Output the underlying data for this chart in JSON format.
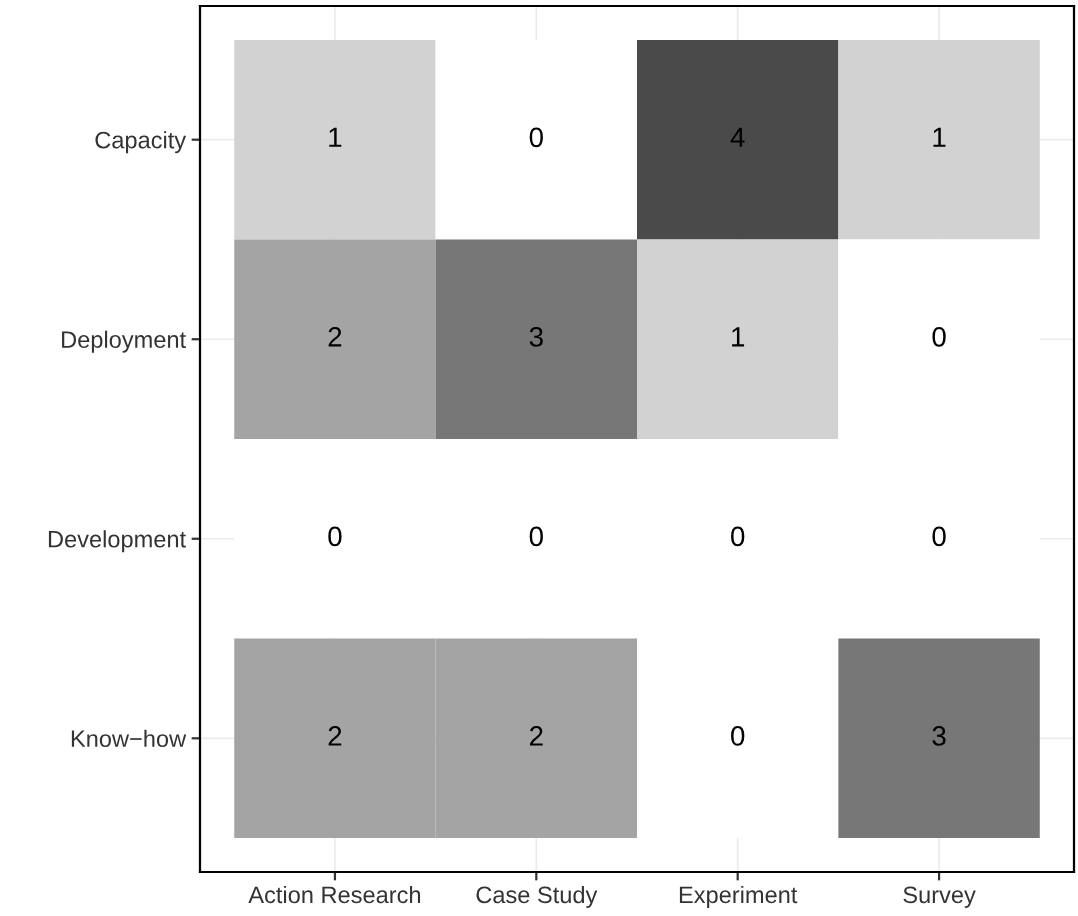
{
  "chart_data": {
    "type": "heatmap",
    "categories": [
      "Action Research",
      "Case Study",
      "Experiment",
      "Survey"
    ],
    "y_categories": [
      "Capacity",
      "Deployment",
      "Development",
      "Know−how"
    ],
    "cells": [
      [
        1,
        0,
        4,
        1
      ],
      [
        2,
        3,
        1,
        0
      ],
      [
        0,
        0,
        0,
        0
      ],
      [
        2,
        2,
        0,
        3
      ]
    ],
    "colors": [
      "#ffffff",
      "#4a4a4a"
    ],
    "data_labels": true,
    "grid": true
  }
}
